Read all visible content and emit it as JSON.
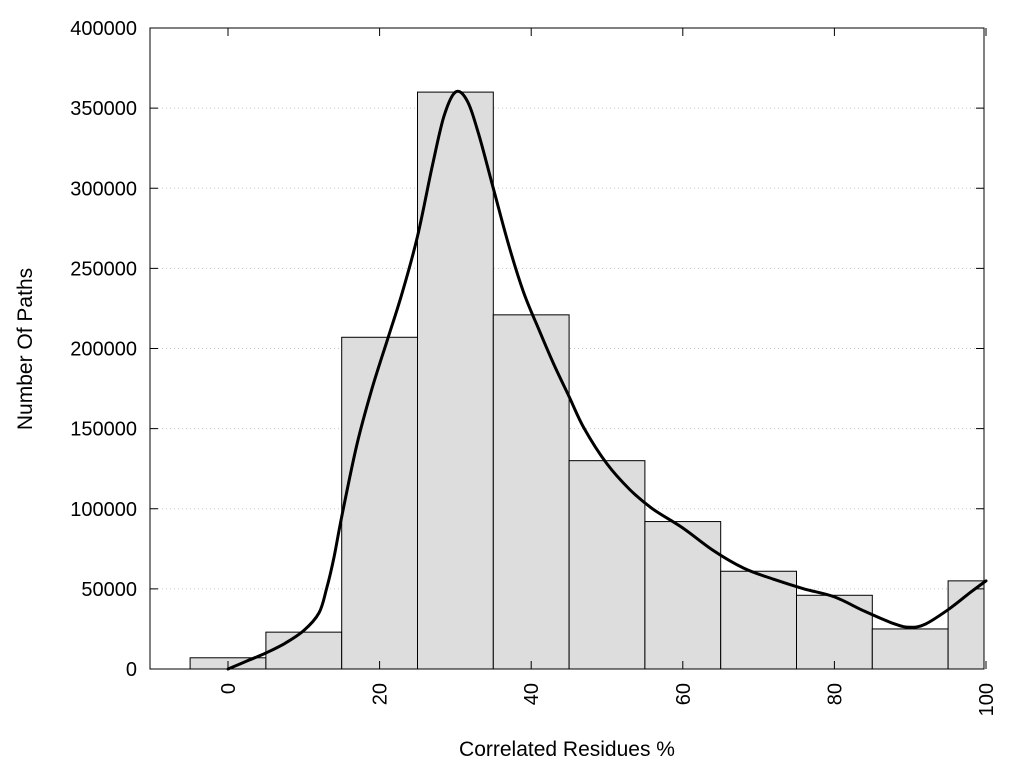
{
  "chart_data": {
    "type": "bar",
    "title": "",
    "xlabel": "Correlated Residues %",
    "ylabel": "Number Of Paths",
    "xlim": [
      -10,
      100
    ],
    "ylim": [
      0,
      400000
    ],
    "x_ticks": [
      0,
      20,
      40,
      60,
      80,
      100
    ],
    "x_tick_labels": [
      "0",
      "20",
      "40",
      "60",
      "80",
      "100"
    ],
    "y_ticks": [
      0,
      50000,
      100000,
      150000,
      200000,
      250000,
      300000,
      350000,
      400000
    ],
    "y_tick_labels": [
      "0",
      "50000",
      "100000",
      "150000",
      "200000",
      "250000",
      "300000",
      "350000",
      "400000"
    ],
    "grid": "horizontal dotted",
    "legend": "none",
    "bars": [
      {
        "center": 0,
        "value": 7000
      },
      {
        "center": 10,
        "value": 23000
      },
      {
        "center": 20,
        "value": 207000
      },
      {
        "center": 30,
        "value": 360000
      },
      {
        "center": 40,
        "value": 221000
      },
      {
        "center": 50,
        "value": 130000
      },
      {
        "center": 60,
        "value": 92000
      },
      {
        "center": 70,
        "value": 61000
      },
      {
        "center": 80,
        "value": 46000
      },
      {
        "center": 90,
        "value": 25000
      },
      {
        "center": 100,
        "value": 55000
      }
    ],
    "curve": [
      [
        0,
        0
      ],
      [
        2.5,
        5000
      ],
      [
        5,
        10000
      ],
      [
        7.5,
        16000
      ],
      [
        10,
        24000
      ],
      [
        12,
        35000
      ],
      [
        13,
        50000
      ],
      [
        14,
        70000
      ],
      [
        15,
        95000
      ],
      [
        17,
        140000
      ],
      [
        19,
        175000
      ],
      [
        21,
        205000
      ],
      [
        23,
        235000
      ],
      [
        25,
        270000
      ],
      [
        27,
        315000
      ],
      [
        28.5,
        345000
      ],
      [
        30,
        360000
      ],
      [
        31.5,
        355000
      ],
      [
        33,
        335000
      ],
      [
        35,
        300000
      ],
      [
        37,
        265000
      ],
      [
        39,
        235000
      ],
      [
        41,
        212000
      ],
      [
        43,
        190000
      ],
      [
        45,
        170000
      ],
      [
        47,
        150000
      ],
      [
        50,
        128000
      ],
      [
        53,
        112000
      ],
      [
        56,
        100000
      ],
      [
        60,
        88000
      ],
      [
        64,
        74000
      ],
      [
        68,
        63000
      ],
      [
        72,
        56000
      ],
      [
        76,
        50000
      ],
      [
        80,
        45000
      ],
      [
        84,
        36000
      ],
      [
        88,
        28000
      ],
      [
        90,
        26000
      ],
      [
        92,
        28000
      ],
      [
        95,
        37000
      ],
      [
        98,
        48000
      ],
      [
        100,
        55000
      ]
    ],
    "colors": {
      "bar_fill": "#dddddd",
      "bar_stroke": "#000000",
      "curve": "#000000",
      "grid": "#c8c8c8"
    }
  }
}
